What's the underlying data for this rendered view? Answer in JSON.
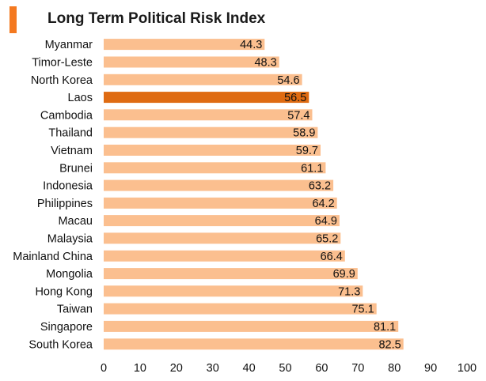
{
  "chart_data": {
    "type": "bar",
    "orientation": "horizontal",
    "title": "Long Term Political Risk Index",
    "categories": [
      "Myanmar",
      "Timor-Leste",
      "North Korea",
      "Laos",
      "Cambodia",
      "Thailand",
      "Vietnam",
      "Brunei",
      "Indonesia",
      "Philippines",
      "Macau",
      "Malaysia",
      "Mainland China",
      "Mongolia",
      "Hong Kong",
      "Taiwan",
      "Singapore",
      "South Korea"
    ],
    "values": [
      44.3,
      48.3,
      54.6,
      56.5,
      57.4,
      58.9,
      59.7,
      61.1,
      63.2,
      64.2,
      64.9,
      65.2,
      66.4,
      69.9,
      71.3,
      75.1,
      81.1,
      82.5
    ],
    "highlight": "Laos",
    "xlim": [
      0,
      100
    ],
    "xticks": [
      0,
      10,
      20,
      30,
      40,
      50,
      60,
      70,
      80,
      90,
      100
    ],
    "xlabel": "",
    "ylabel": "",
    "grid": false,
    "legend": "none",
    "colors": {
      "bar": "#fbbf8f",
      "highlight": "#df6b12",
      "title_accent": "#f47920"
    }
  }
}
